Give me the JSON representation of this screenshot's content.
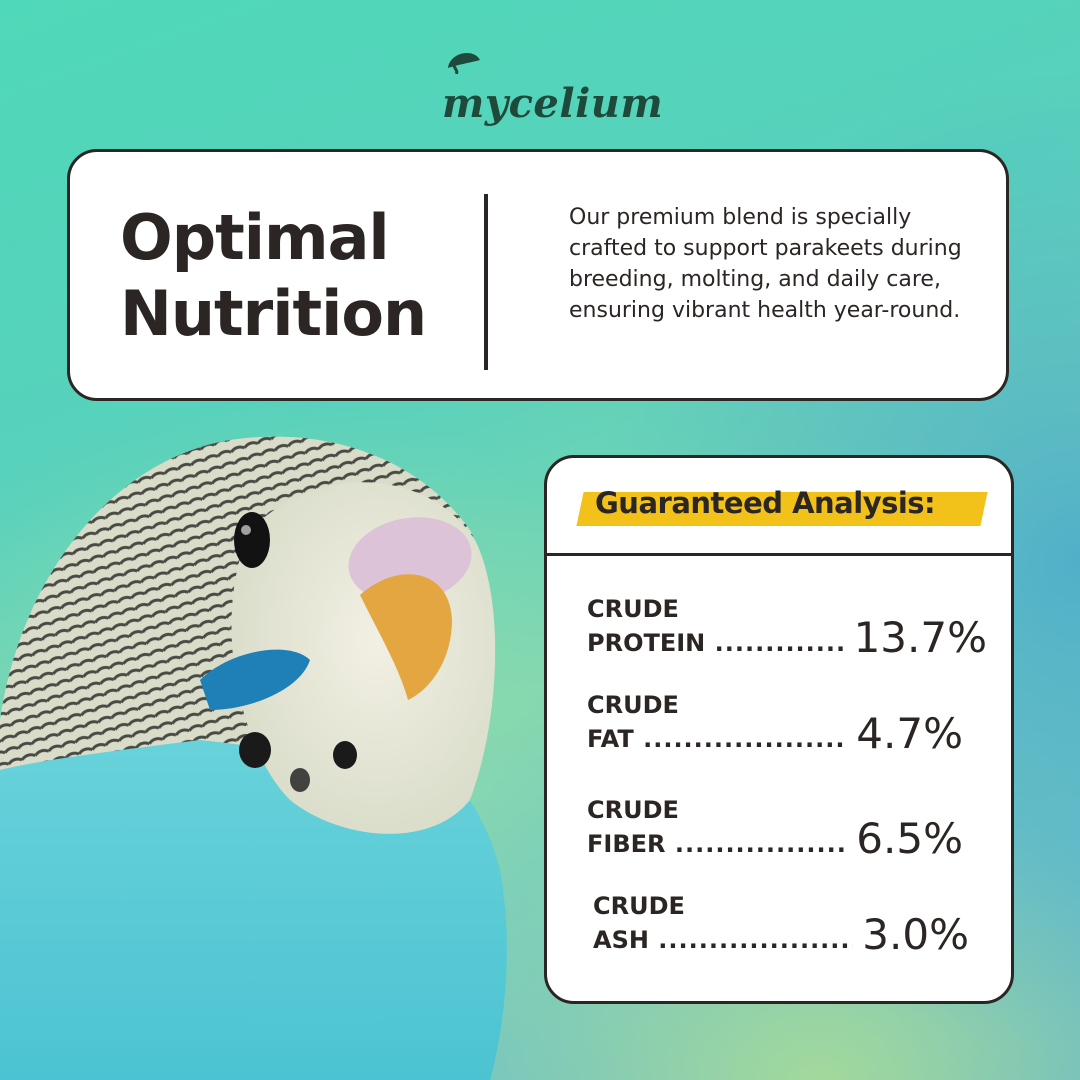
{
  "brand": {
    "logo_text": "mycelium"
  },
  "header": {
    "title_line1": "Optimal",
    "title_line2": "Nutrition",
    "description": "Our premium blend is specially crafted to support parakeets during breeding, molting, and daily care, ensuring vibrant health year-round."
  },
  "analysis": {
    "title": "Guaranteed Analysis:",
    "items": [
      {
        "label_line1": "CRUDE",
        "label_line2": "PROTEIN",
        "value": "13.7%"
      },
      {
        "label_line1": "CRUDE",
        "label_line2": "FAT",
        "value": "4.7%"
      },
      {
        "label_line1": "CRUDE",
        "label_line2": "FIBER",
        "value": "6.5%"
      },
      {
        "label_line1": "CRUDE",
        "label_line2": "ASH",
        "value": "3.0%"
      }
    ]
  },
  "colors": {
    "accent": "#f2c21b",
    "ink": "#2b2623",
    "logo": "#1f4a3b",
    "background_teal": "#4fd8b9",
    "background_blue": "#63b6cc"
  },
  "icons": [
    "mushroom-cap-icon",
    "budgie-photo"
  ]
}
